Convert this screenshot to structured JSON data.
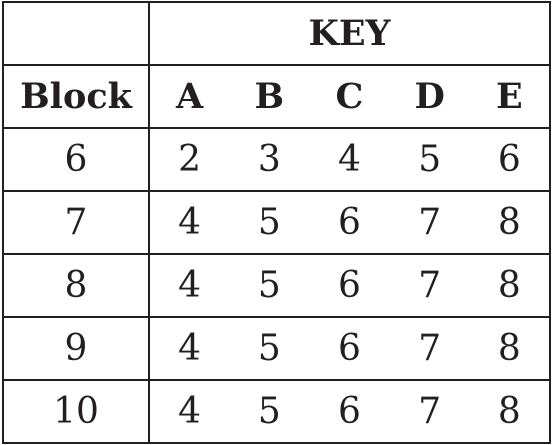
{
  "table": {
    "top_header": "KEY",
    "row_header_label": "Block",
    "columns": [
      "A",
      "B",
      "C",
      "D",
      "E"
    ],
    "rows": [
      {
        "block": "6",
        "values": [
          "2",
          "3",
          "4",
          "5",
          "6"
        ]
      },
      {
        "block": "7",
        "values": [
          "4",
          "5",
          "6",
          "7",
          "8"
        ]
      },
      {
        "block": "8",
        "values": [
          "4",
          "5",
          "6",
          "7",
          "8"
        ]
      },
      {
        "block": "9",
        "values": [
          "4",
          "5",
          "6",
          "7",
          "8"
        ]
      },
      {
        "block": "10",
        "values": [
          "4",
          "5",
          "6",
          "7",
          "8"
        ]
      }
    ]
  }
}
